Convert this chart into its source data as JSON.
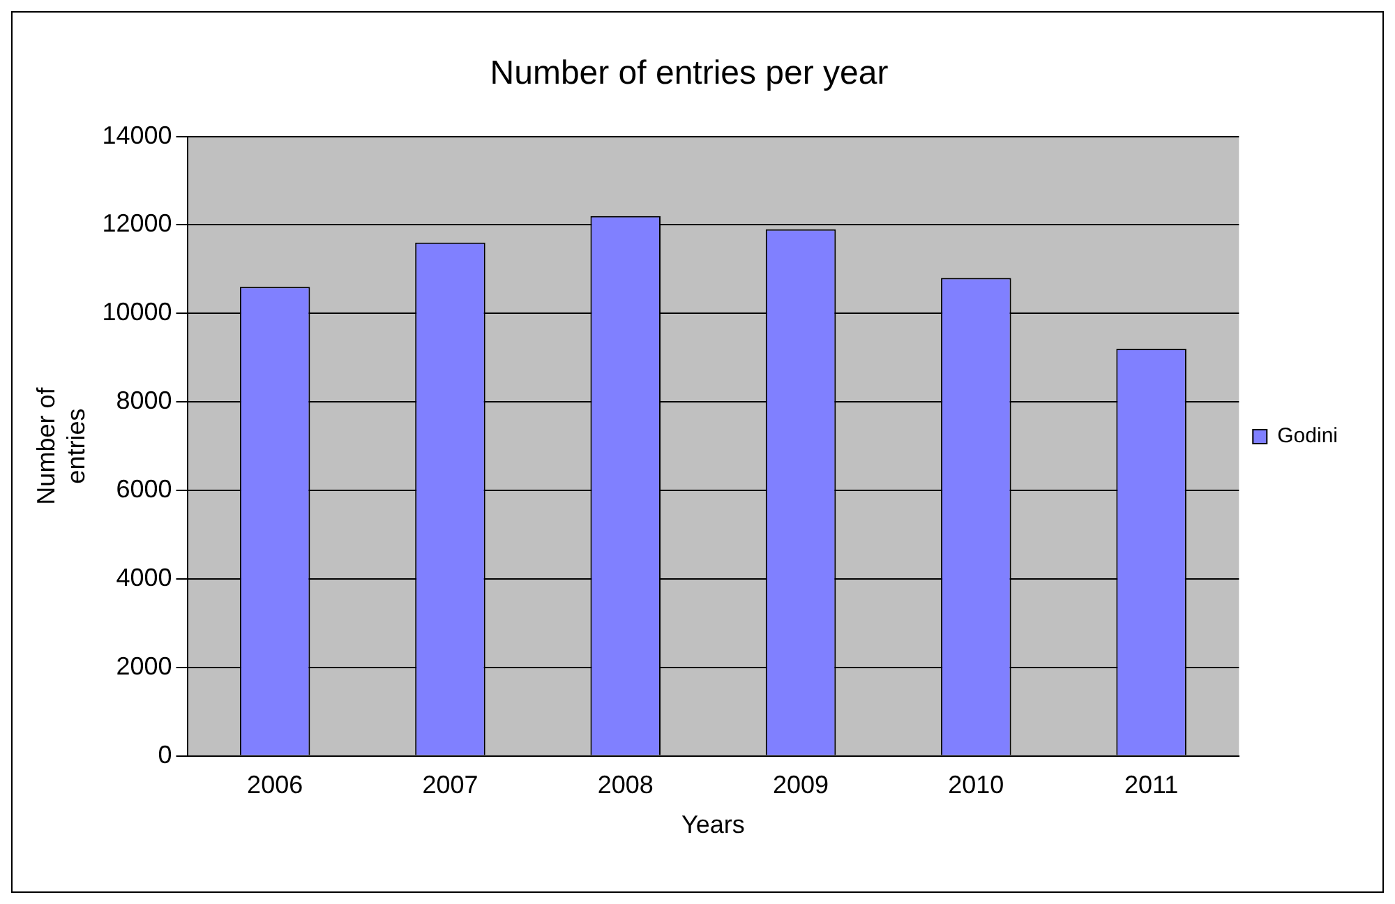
{
  "chart_data": {
    "type": "bar",
    "title": "Number of entries per year",
    "xlabel": "Years",
    "ylabel": "Number of entries",
    "categories": [
      "2006",
      "2007",
      "2008",
      "2009",
      "2010",
      "2011"
    ],
    "series": [
      {
        "name": "Godini",
        "color": "#8080ff",
        "values": [
          10600,
          11600,
          12200,
          11900,
          10800,
          9200
        ]
      }
    ],
    "ylim": [
      0,
      14000
    ],
    "yticks": [
      0,
      2000,
      4000,
      6000,
      8000,
      10000,
      12000,
      14000
    ],
    "grid": "y",
    "legend": "right"
  }
}
